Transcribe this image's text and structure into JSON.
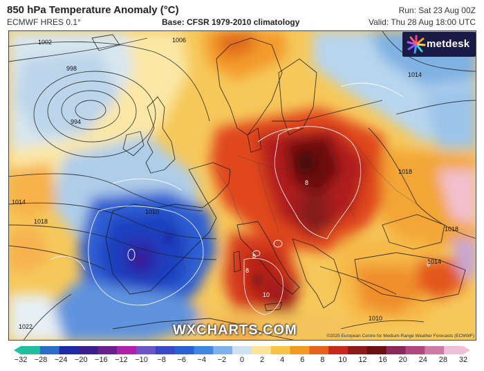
{
  "header": {
    "title": "850 hPa Temperature Anomaly (°C)",
    "model": "ECMWF HRES 0.1°",
    "base": "Base: CFSR 1979-2010 climatology",
    "run": "Run: Sat 23 Aug 00Z",
    "valid": "Valid: Thu 28 Aug 18:00 UTC"
  },
  "branding": {
    "logo_text": "metdesk",
    "watermark": "WXCHARTS.COM",
    "copyright": "©2025 European Centre for Medium-Range Weather Forecasts (ECMWF)"
  },
  "isobar_labels": [
    "1002",
    "1006",
    "998",
    "994",
    "1014",
    "1018",
    "1014",
    "1010",
    "1018",
    "1018",
    "1014",
    "1010",
    "1022"
  ],
  "anomaly_contour_labels": [
    "8",
    "8",
    "10",
    "8",
    "6"
  ],
  "legend": {
    "ticks": [
      "−32",
      "−28",
      "−24",
      "−20",
      "−16",
      "−12",
      "−10",
      "−8",
      "−6",
      "−4",
      "−2",
      "0",
      "2",
      "4",
      "6",
      "8",
      "10",
      "12",
      "16",
      "20",
      "24",
      "28",
      "32"
    ],
    "colors": [
      "#1fbf9f",
      "#2b6ec9",
      "#1f2aa8",
      "#3a1f8f",
      "#6a1f8f",
      "#b021a9",
      "#6c55c8",
      "#3949c7",
      "#2a62d6",
      "#3f86e2",
      "#7db3ea",
      "#cfe2f1",
      "#fbe39a",
      "#f8c447",
      "#f39a20",
      "#e6621a",
      "#c9281c",
      "#8f1a1a",
      "#6a1010",
      "#8a2a5a",
      "#b2477d",
      "#d07aa8",
      "#efc0d8"
    ]
  }
}
